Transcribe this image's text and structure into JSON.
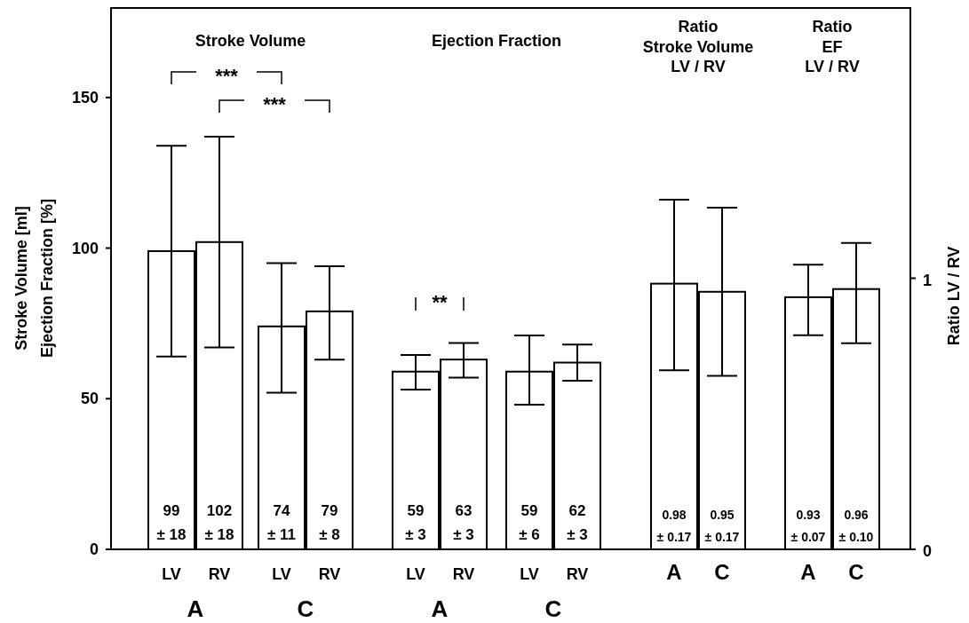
{
  "chart_data": {
    "type": "bar",
    "categories": [
      "LV",
      "RV",
      "LV",
      "RV",
      "LV",
      "RV",
      "LV",
      "RV",
      "A",
      "C",
      "A",
      "C"
    ],
    "series": [
      {
        "color": "#ffffff",
        "values": [
          99,
          102,
          74,
          79,
          59,
          63,
          59,
          62,
          null,
          null,
          null,
          null
        ],
        "errors": [
          [
            64,
            134
          ],
          [
            67,
            137
          ],
          [
            52,
            95
          ],
          [
            63,
            94
          ],
          [
            53,
            64.5
          ],
          [
            57,
            68.5
          ],
          [
            48,
            71
          ],
          [
            56,
            68
          ],
          null,
          null,
          null,
          null
        ],
        "value_labels": [
          "99\n± 18",
          "102\n± 18",
          "74\n± 11",
          "79\n± 8",
          "59\n± 3",
          "63\n± 3",
          "59\n± 6",
          "62\n± 3",
          null,
          null,
          null,
          null
        ]
      },
      {
        "color": "#ffffff",
        "axis": "y2",
        "values": [
          null,
          null,
          null,
          null,
          null,
          null,
          null,
          null,
          0.98,
          0.95,
          0.93,
          0.96
        ],
        "errors": [
          null,
          null,
          null,
          null,
          null,
          null,
          null,
          null,
          [
            0.66,
            1.29
          ],
          [
            0.64,
            1.26
          ],
          [
            0.79,
            1.05
          ],
          [
            0.76,
            1.13
          ]
        ],
        "value_labels": [
          null,
          null,
          null,
          null,
          null,
          null,
          null,
          null,
          "0.98\n± 0.17",
          "0.95\n± 0.17",
          "0.93\n± 0.07",
          "0.96\n± 0.10"
        ]
      }
    ],
    "ylabel": "Stroke Volume [ml]\nEjection Fraction [%]",
    "y2label": "Ratio LV / RV",
    "ylim": [
      0,
      180
    ],
    "yticks": [
      0,
      50,
      100,
      150
    ],
    "y2lim": [
      0,
      2.0
    ],
    "y2ticks": [
      0,
      1
    ],
    "annotations": [
      "Stroke Volume",
      "Ejection Fraction",
      "Ratio\nStroke Volume\nLV / RV",
      "Ratio\nEF\nLV / RV",
      "***",
      "***",
      "**",
      "A",
      "C",
      "A",
      "C"
    ],
    "grid": false
  }
}
